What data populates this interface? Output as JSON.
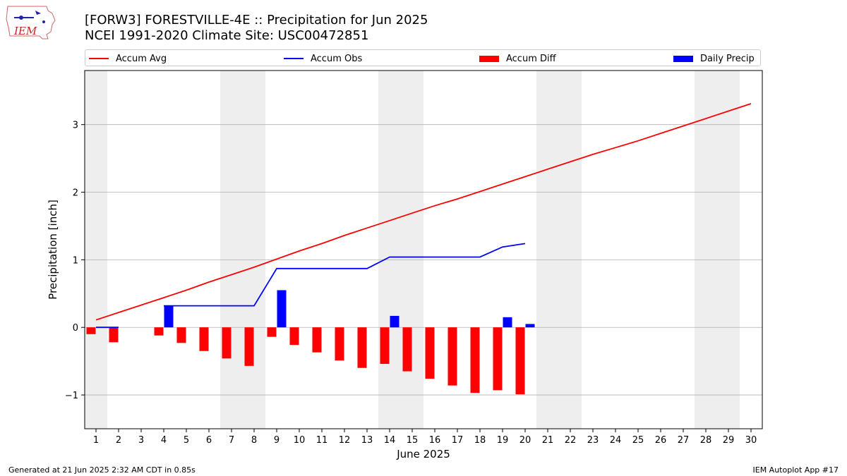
{
  "title_line1": "[FORW3] FORESTVILLE-4E :: Precipitation for Jun 2025",
  "title_line2": "NCEI 1991-2020 Climate Site: USC00472851",
  "logo_text": "IEM",
  "footer_left": "Generated at 21 Jun 2025 2:32 AM CDT in 0.85s",
  "footer_right": "IEM Autoplot App #17",
  "colors": {
    "avg": "#ff0000",
    "obs": "#0000ff",
    "diff": "#ff0000",
    "daily": "#0000ff",
    "weekend_shade": "#eeeeee",
    "grid": "#b0b0b0"
  },
  "legend": [
    {
      "label": "Accum Avg",
      "kind": "line",
      "color": "#ff0000"
    },
    {
      "label": "Accum Obs",
      "kind": "line",
      "color": "#0000ff"
    },
    {
      "label": "Accum Diff",
      "kind": "box",
      "color": "#ff0000"
    },
    {
      "label": "Daily Precip",
      "kind": "box",
      "color": "#0000ff"
    }
  ],
  "chart_data": {
    "type": "bar",
    "title": "[FORW3] FORESTVILLE-4E :: Precipitation for Jun 2025",
    "subtitle": "NCEI 1991-2020 Climate Site: USC00472851",
    "xlabel": "June 2025",
    "ylabel": "Precipitation [inch]",
    "xlim": [
      0.5,
      30.5
    ],
    "ylim": [
      -1.5,
      3.8
    ],
    "yticks": [
      -1,
      0,
      1,
      2,
      3
    ],
    "xticks": [
      1,
      2,
      3,
      4,
      5,
      6,
      7,
      8,
      9,
      10,
      11,
      12,
      13,
      14,
      15,
      16,
      17,
      18,
      19,
      20,
      21,
      22,
      23,
      24,
      25,
      26,
      27,
      28,
      29,
      30
    ],
    "grid": "horizontal",
    "legend_position": "top",
    "weekend_shading": [
      [
        0.5,
        1.5
      ],
      [
        6.5,
        8.5
      ],
      [
        13.5,
        15.5
      ],
      [
        20.5,
        22.5
      ],
      [
        27.5,
        29.5
      ]
    ],
    "accum_avg": {
      "x": [
        1,
        2,
        3,
        4,
        5,
        6,
        7,
        8,
        9,
        10,
        11,
        12,
        13,
        14,
        15,
        16,
        17,
        18,
        19,
        20,
        21,
        22,
        23,
        24,
        25,
        26,
        27,
        28,
        29,
        30
      ],
      "y": [
        0.11,
        0.22,
        0.33,
        0.44,
        0.55,
        0.67,
        0.78,
        0.89,
        1.01,
        1.13,
        1.24,
        1.36,
        1.47,
        1.58,
        1.69,
        1.8,
        1.9,
        2.01,
        2.12,
        2.23,
        2.34,
        2.45,
        2.56,
        2.66,
        2.76,
        2.87,
        2.98,
        3.09,
        3.2,
        3.31
      ]
    },
    "accum_obs": {
      "x": [
        1,
        2,
        3,
        4,
        5,
        6,
        7,
        8,
        9,
        10,
        11,
        12,
        13,
        14,
        15,
        16,
        17,
        18,
        19,
        20
      ],
      "y": [
        0.0,
        0.0,
        null,
        0.32,
        0.32,
        0.32,
        0.32,
        0.32,
        0.87,
        0.87,
        0.87,
        0.87,
        0.87,
        1.04,
        1.04,
        1.04,
        1.04,
        1.04,
        1.19,
        1.24
      ]
    },
    "accum_diff": {
      "x": [
        1,
        2,
        4,
        5,
        6,
        7,
        8,
        9,
        10,
        11,
        12,
        13,
        14,
        15,
        16,
        17,
        18,
        19,
        20
      ],
      "values": [
        -0.1,
        -0.22,
        -0.12,
        -0.23,
        -0.35,
        -0.46,
        -0.57,
        -0.14,
        -0.26,
        -0.37,
        -0.49,
        -0.6,
        -0.54,
        -0.65,
        -0.76,
        -0.86,
        -0.97,
        -0.93,
        -0.99
      ]
    },
    "daily_precip": {
      "x": [
        4,
        9,
        14,
        19,
        20
      ],
      "values": [
        0.32,
        0.55,
        0.17,
        0.15,
        0.05
      ]
    }
  }
}
